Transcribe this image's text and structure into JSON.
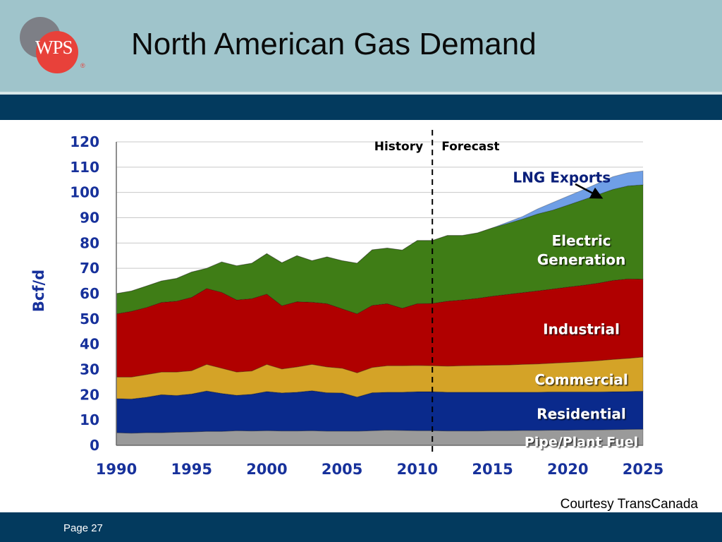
{
  "slide": {
    "title": "North American Gas Demand",
    "logo_text": "WPS",
    "logo_mark": "®",
    "courtesy": "Courtesy TransCanada",
    "page": "Page 27"
  },
  "colors": {
    "header_bg": "#9fc4cb",
    "band_bg": "#033a5e",
    "axis_text": "#17319b"
  },
  "chart_data": {
    "type": "area",
    "stacked": true,
    "title": "",
    "xlabel": "",
    "ylabel": "Bcf/d",
    "xlim": [
      1990,
      2025
    ],
    "ylim": [
      0,
      120
    ],
    "y_ticks": [
      0,
      10,
      20,
      30,
      40,
      50,
      60,
      70,
      80,
      90,
      100,
      110,
      120
    ],
    "x_ticks": [
      1990,
      1995,
      2000,
      2005,
      2010,
      2015,
      2020,
      2025
    ],
    "grid": true,
    "divider": {
      "x": 2011,
      "left_label": "History",
      "right_label": "Forecast"
    },
    "x": [
      1990,
      1991,
      1992,
      1993,
      1994,
      1995,
      1996,
      1997,
      1998,
      1999,
      2000,
      2001,
      2002,
      2003,
      2004,
      2005,
      2006,
      2007,
      2008,
      2009,
      2010,
      2011,
      2012,
      2013,
      2014,
      2015,
      2016,
      2017,
      2018,
      2019,
      2020,
      2021,
      2022,
      2023,
      2024,
      2025
    ],
    "series": [
      {
        "name": "Pipe/Plant Fuel",
        "color": "#9a9a9a",
        "values": [
          5,
          4.8,
          5,
          5,
          5.2,
          5.3,
          5.5,
          5.5,
          5.8,
          5.7,
          5.8,
          5.7,
          5.7,
          5.8,
          5.6,
          5.6,
          5.6,
          5.8,
          6,
          5.9,
          5.8,
          5.8,
          5.7,
          5.7,
          5.7,
          5.8,
          5.8,
          5.9,
          5.9,
          6,
          6,
          6.1,
          6.1,
          6.2,
          6.3,
          6.4
        ]
      },
      {
        "name": "Residential",
        "color": "#0a2a8c",
        "values": [
          13.5,
          13.5,
          14,
          15,
          14.5,
          15,
          16,
          15,
          14,
          14.5,
          15.5,
          15,
          15.3,
          15.8,
          15.2,
          15.1,
          13.5,
          15,
          15,
          15.1,
          15.4,
          15.4,
          15.3,
          15.3,
          15.3,
          15.2,
          15.2,
          15.1,
          15.1,
          15.1,
          15.1,
          15,
          15,
          15,
          15,
          15
        ]
      },
      {
        "name": "Commercial",
        "color": "#d4a327",
        "values": [
          8.5,
          8.7,
          9,
          9,
          9.3,
          9.2,
          10.5,
          10,
          9.2,
          9.2,
          10.7,
          9.5,
          10,
          10.4,
          10.2,
          9.8,
          9.6,
          10,
          10.5,
          10.5,
          10.4,
          10.3,
          10.3,
          10.5,
          10.6,
          10.7,
          10.8,
          11,
          11.2,
          11.4,
          11.7,
          12,
          12.4,
          12.8,
          13.1,
          13.5
        ]
      },
      {
        "name": "Industrial",
        "color": "#b00000",
        "values": [
          25,
          26,
          26.5,
          27.5,
          28,
          29,
          30,
          30,
          28.5,
          28.6,
          27.8,
          25,
          25.8,
          24.6,
          25,
          23.5,
          23.3,
          24.5,
          24.5,
          22.7,
          24.4,
          24.6,
          25.7,
          26,
          26.5,
          27.3,
          27.9,
          28.4,
          28.9,
          29.3,
          29.8,
          30.2,
          30.6,
          31.2,
          31.4,
          30.8
        ]
      },
      {
        "name": "Electric Generation",
        "color": "#3f7d16",
        "values": [
          8,
          8,
          8.5,
          8.5,
          9,
          10,
          8,
          12,
          13.5,
          14,
          16,
          17,
          18.2,
          16.4,
          18.5,
          19,
          20,
          22,
          22,
          23,
          25,
          24.9,
          26,
          25.5,
          25.9,
          27,
          28,
          29.1,
          30.4,
          31.2,
          32.4,
          33.7,
          35,
          36,
          36.8,
          37.3
        ]
      },
      {
        "name": "LNG Exports",
        "color": "#6f9fe6",
        "values": [
          0,
          0,
          0,
          0,
          0,
          0,
          0,
          0,
          0,
          0,
          0,
          0,
          0,
          0,
          0,
          0,
          0,
          0,
          0,
          0,
          0,
          0,
          0,
          0,
          0,
          0,
          0.5,
          1,
          2,
          3,
          3.5,
          4,
          4.5,
          5,
          5.2,
          5.5
        ]
      }
    ],
    "annotations": {
      "lng_label": "LNG Exports",
      "electric_label_1": "Electric",
      "electric_label_2": "Generation",
      "industrial_label": "Industrial",
      "commercial_label": "Commercial",
      "residential_label": "Residential",
      "pipe_label": "Pipe/Plant Fuel"
    }
  }
}
